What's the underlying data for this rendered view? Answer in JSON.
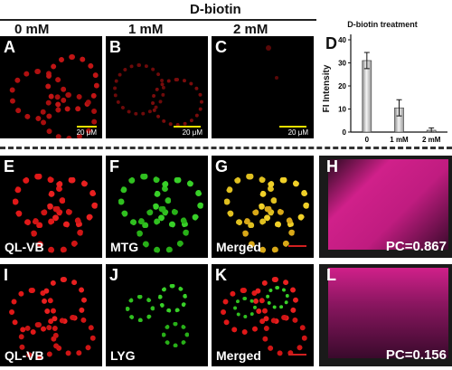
{
  "figure": {
    "header_title": "D-biotin",
    "conc_labels": [
      "0 mM",
      "1 mM",
      "2 mM"
    ],
    "panels": {
      "A": "A",
      "B": "B",
      "C": "C",
      "D": "D",
      "E": "E",
      "F": "F",
      "G": "G",
      "H": "H",
      "I": "I",
      "J": "J",
      "K": "K",
      "L": "L"
    },
    "scale_label": "20 μM",
    "row2_labels": [
      "QL-VB",
      "MTG",
      "Merged"
    ],
    "row3_labels": [
      "QL-VB",
      "LYG",
      "Merged"
    ],
    "pc_h": "PC=0.867",
    "pc_l": "PC=0.156",
    "colors": {
      "red_channel": "#e01818",
      "green_channel": "#30c020",
      "merge_yellow": "#e0c020",
      "scatter_magenta": "#d0208a"
    }
  },
  "chart_data": {
    "type": "bar",
    "title": "D-biotin treatment",
    "ylabel": "FI Intensity",
    "xlabel": "",
    "categories": [
      "0",
      "1 mM",
      "2 mM"
    ],
    "values": [
      31,
      10.5,
      0.8
    ],
    "errors": [
      3.5,
      3.5,
      1.0
    ],
    "ylim": [
      0,
      40
    ],
    "yticks": [
      "0",
      "10",
      "20",
      "30",
      "40"
    ],
    "grid": false
  }
}
